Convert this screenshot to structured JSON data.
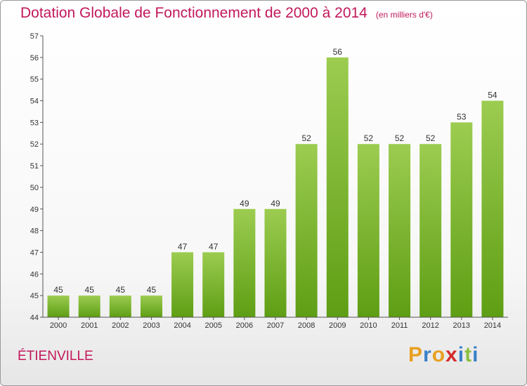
{
  "header": {
    "title": "Dotation Globale de Fonctionnement de 2000 à 2014",
    "subtitle": "(en milliers d'€)"
  },
  "footer": {
    "town": "ÉTIENVILLE",
    "brand": "Proxiti"
  },
  "colors": {
    "bar_top": "#9ccc50",
    "bar_bottom": "#5e9e14",
    "title": "#c2185b",
    "brand_letters": [
      "#e8a020",
      "#3a80c8",
      "#e8a020",
      "#d42a2a",
      "#3a80c8",
      "#8cc040",
      "#3a80c8"
    ]
  },
  "chart_data": {
    "type": "bar",
    "title": "Dotation Globale de Fonctionnement de 2000 à 2014",
    "subtitle": "(en milliers d'€)",
    "categories": [
      "2000",
      "2001",
      "2002",
      "2003",
      "2004",
      "2005",
      "2006",
      "2007",
      "2008",
      "2009",
      "2010",
      "2011",
      "2012",
      "2013",
      "2014"
    ],
    "values": [
      45,
      45,
      45,
      45,
      47,
      47,
      49,
      49,
      52,
      56,
      52,
      52,
      52,
      53,
      54
    ],
    "data_labels": [
      "45",
      "45",
      "45",
      "45",
      "47",
      "47",
      "49",
      "49",
      "52",
      "56",
      "52",
      "52",
      "52",
      "53",
      "54"
    ],
    "ylim": [
      44,
      57
    ],
    "yticks": [
      "44",
      "45",
      "46",
      "47",
      "48",
      "49",
      "50",
      "51",
      "52",
      "53",
      "54",
      "55",
      "56",
      "57"
    ],
    "grid": false,
    "legend": "none"
  }
}
